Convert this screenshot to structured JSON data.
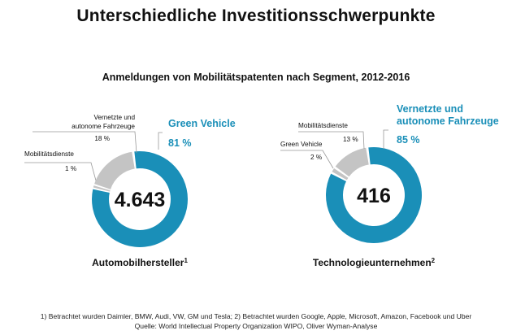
{
  "title": "Unterschiedliche Investitionsschwerpunkte",
  "subtitle": "Anmeldungen von Mobilitätspatenten nach Segment, 2012-2016",
  "colors": {
    "primary": "#1a8fb8",
    "secondary": "#c4c4c4",
    "text": "#111111",
    "leader": "#999999"
  },
  "chart_data": [
    {
      "type": "pie",
      "variant": "donut",
      "total_label": "4.643",
      "name": "Automobilhersteller",
      "footnote_ref": "1",
      "slices": [
        {
          "label": "Green Vehicle",
          "value": 81,
          "value_label": "81 %",
          "color": "#1a8fb8",
          "highlight": true
        },
        {
          "label": "Mobilitätsdienste",
          "value": 1,
          "value_label": "1 %",
          "color": "#c4c4c4",
          "highlight": false
        },
        {
          "label": "Vernetzte und autonome Fahrzeuge",
          "value": 18,
          "value_label": "18 %",
          "color": "#c4c4c4",
          "highlight": false
        }
      ]
    },
    {
      "type": "pie",
      "variant": "donut",
      "total_label": "416",
      "name": "Technologieunternehmen",
      "footnote_ref": "2",
      "slices": [
        {
          "label": "Vernetzte und autonome Fahrzeuge",
          "value": 85,
          "value_label": "85 %",
          "color": "#1a8fb8",
          "highlight": true
        },
        {
          "label": "Green Vehicle",
          "value": 2,
          "value_label": "2 %",
          "color": "#c4c4c4",
          "highlight": false
        },
        {
          "label": "Mobilitätsdienste",
          "value": 13,
          "value_label": "13 %",
          "color": "#c4c4c4",
          "highlight": false
        }
      ]
    }
  ],
  "footnotes": [
    "1) Betrachtet wurden Daimler, BMW, Audi, VW, GM und Tesla; 2) Betrachtet wurden Google, Apple, Microsoft, Amazon, Facebook und Uber",
    "Quelle: World Intellectual Property Organization WIPO, Oliver Wyman-Analyse"
  ]
}
